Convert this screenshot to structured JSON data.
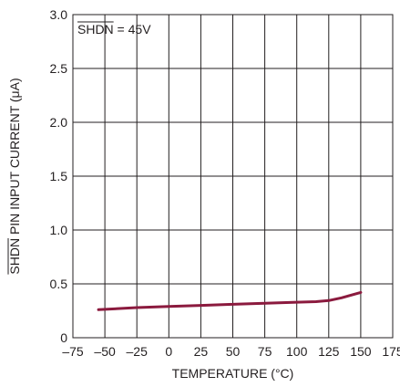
{
  "chart_data": {
    "type": "line",
    "title": "",
    "annotation": {
      "prefix": "SHDN",
      "suffix": " = 45V"
    },
    "xlabel": "TEMPERATURE (°C)",
    "ylabel": {
      "prefix": "SHDN",
      "suffix": " PIN INPUT CURRENT (μA)"
    },
    "xlim": [
      -75,
      175
    ],
    "ylim": [
      0,
      3.0
    ],
    "xticks": [
      -75,
      -50,
      -25,
      0,
      25,
      50,
      75,
      100,
      125,
      150,
      175
    ],
    "xtick_labels": [
      "–75",
      "–50",
      "–25",
      "0",
      "25",
      "50",
      "75",
      "100",
      "125",
      "150",
      "175"
    ],
    "yticks": [
      0,
      0.5,
      1.0,
      1.5,
      2.0,
      2.5,
      3.0
    ],
    "ytick_labels": [
      "0",
      "0.5",
      "1.0",
      "1.5",
      "2.0",
      "2.5",
      "3.0"
    ],
    "grid": true,
    "series": [
      {
        "color": "#8b1a3e",
        "x": [
          -55,
          -25,
          0,
          25,
          50,
          75,
          100,
          115,
          125,
          135,
          150
        ],
        "y": [
          0.26,
          0.28,
          0.29,
          0.3,
          0.31,
          0.32,
          0.33,
          0.335,
          0.345,
          0.37,
          0.42
        ]
      }
    ]
  }
}
